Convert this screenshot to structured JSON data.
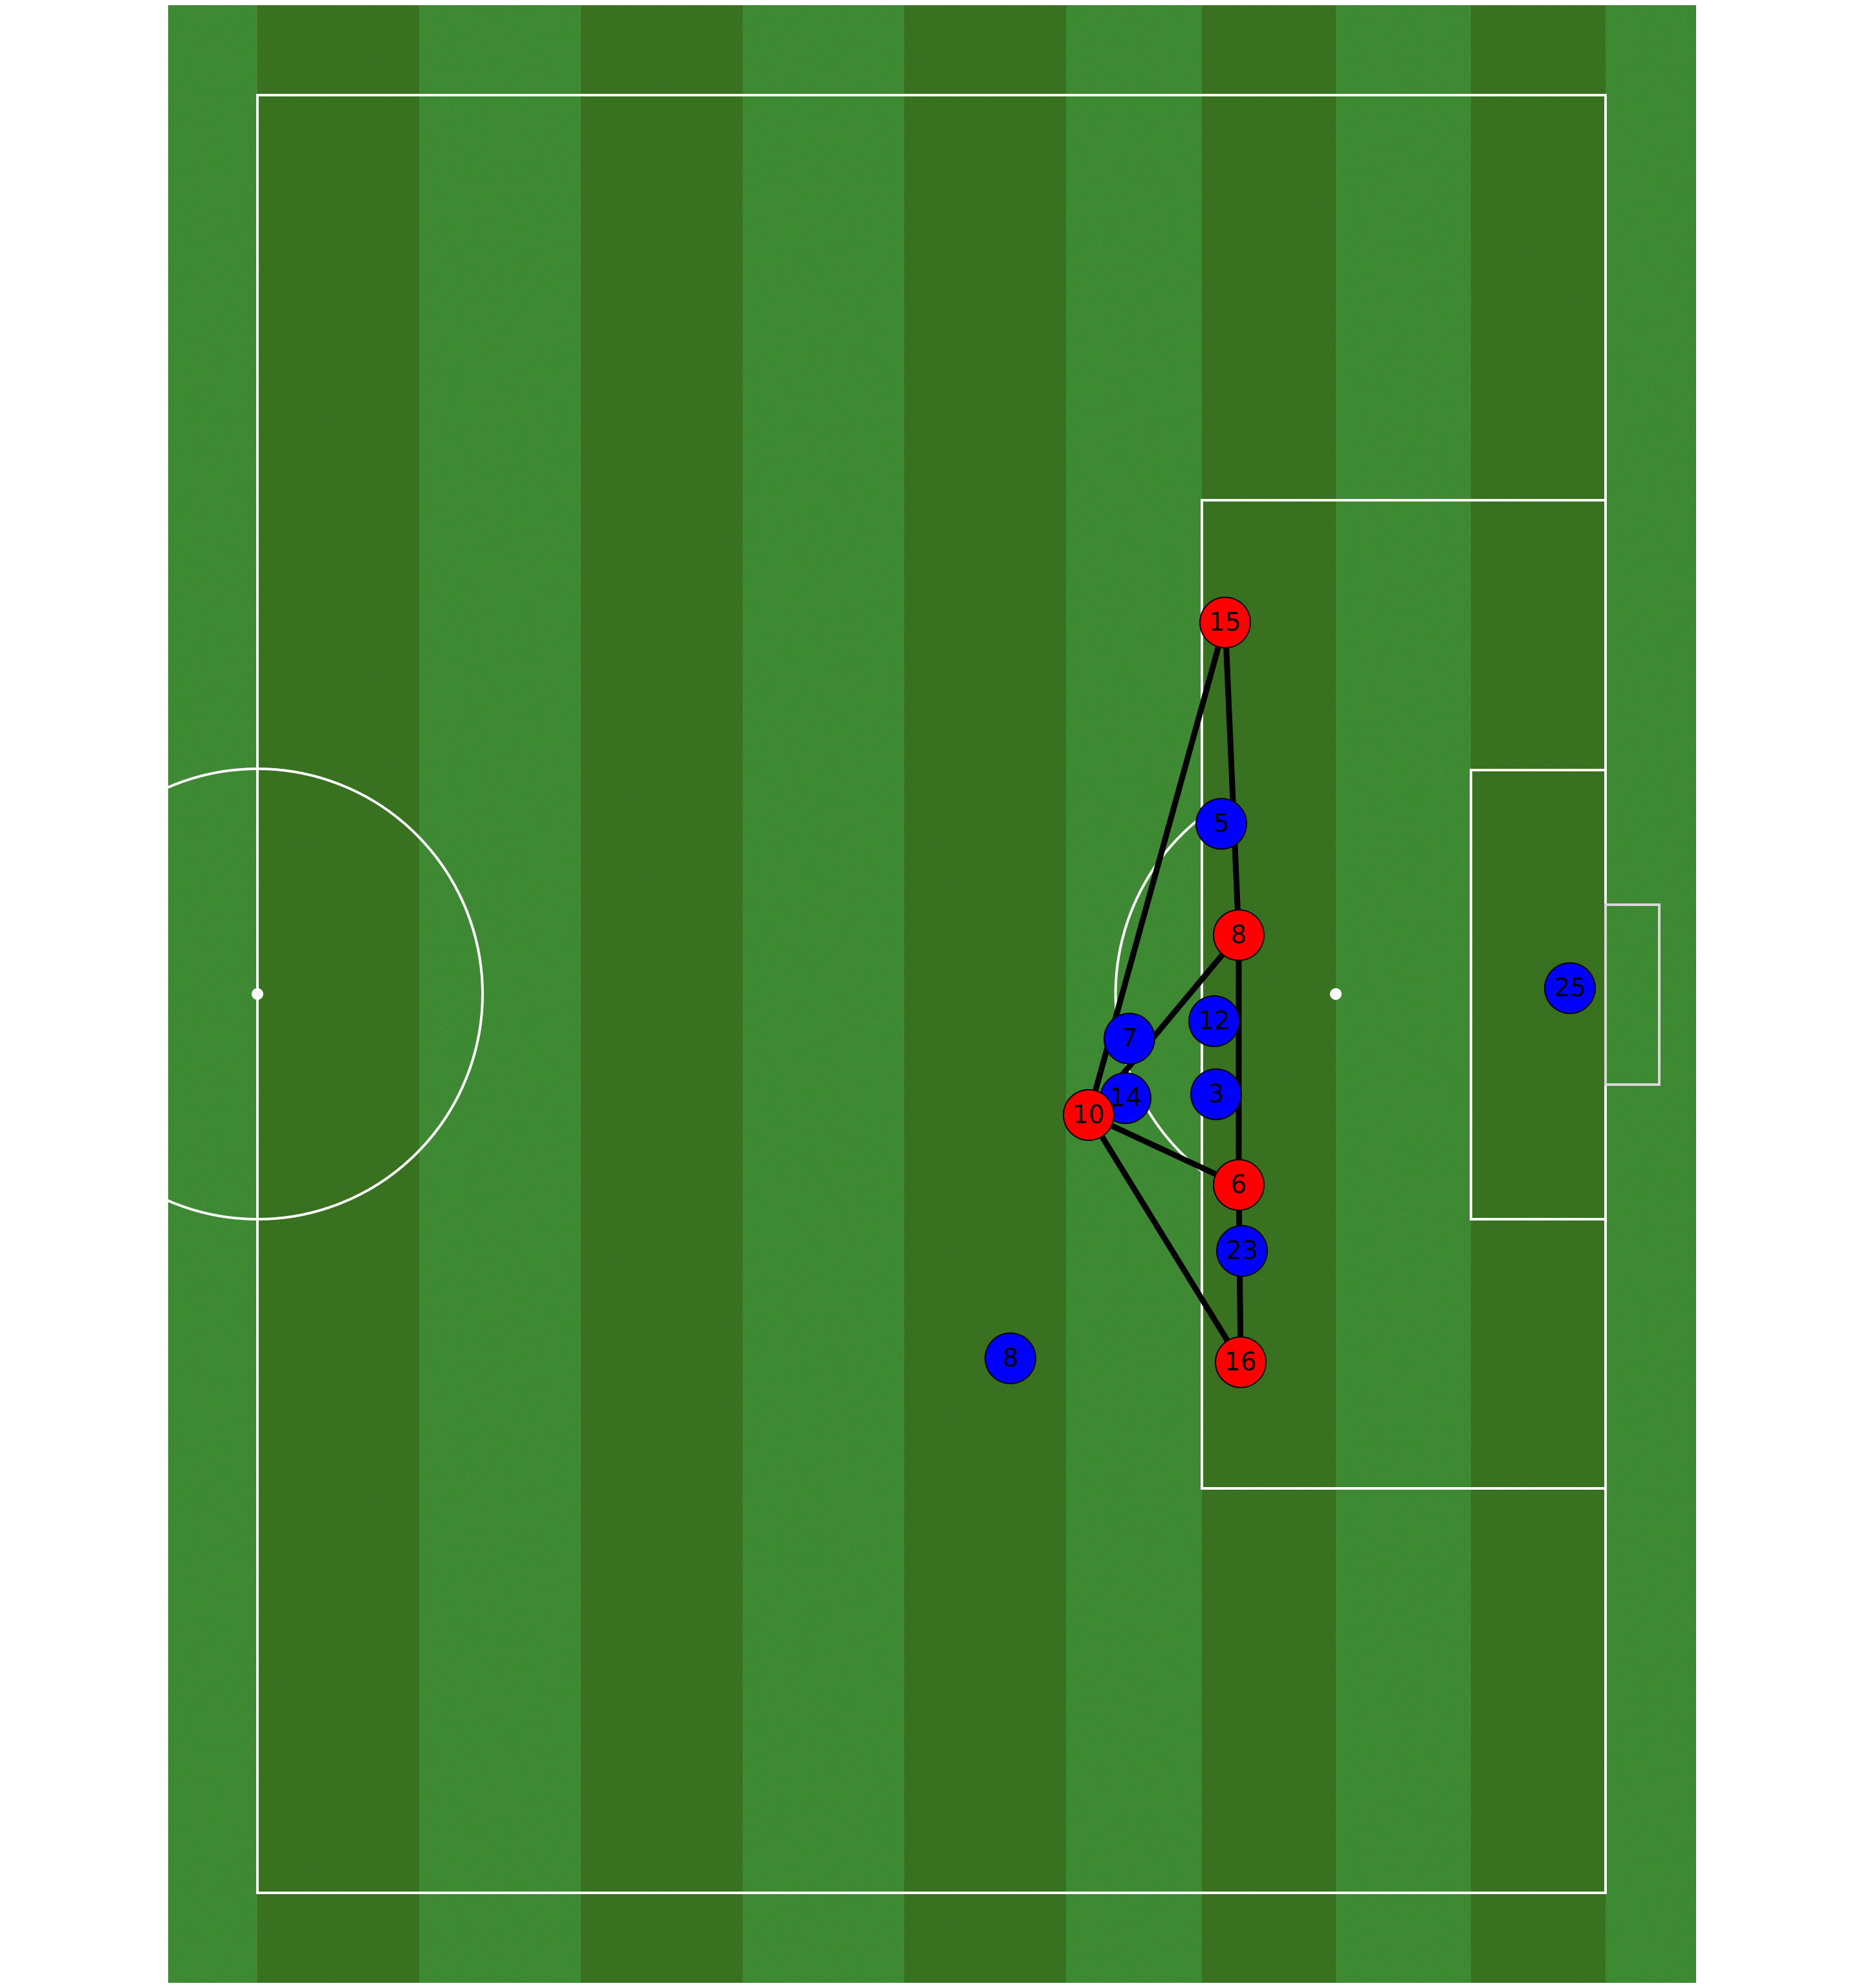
{
  "pitch": {
    "colors": {
      "grass_light": "#469a3a",
      "grass_dark": "#3f7f24",
      "lines": "#ffffff",
      "pass_lines": "#000000"
    }
  },
  "teams": {
    "attacking": {
      "color": "#ff0000",
      "edge": "#000000"
    },
    "defending": {
      "color": "#0000ff",
      "edge": "#000000"
    }
  },
  "players": {
    "attacking": [
      {
        "id": "a15",
        "number": "15"
      },
      {
        "id": "a8",
        "number": "8"
      },
      {
        "id": "a10",
        "number": "10"
      },
      {
        "id": "a6",
        "number": "6"
      },
      {
        "id": "a16",
        "number": "16"
      }
    ],
    "defending": [
      {
        "id": "d5",
        "number": "5"
      },
      {
        "id": "d12",
        "number": "12"
      },
      {
        "id": "d7",
        "number": "7"
      },
      {
        "id": "d14",
        "number": "14"
      },
      {
        "id": "d3",
        "number": "3"
      },
      {
        "id": "d23",
        "number": "23"
      },
      {
        "id": "d8",
        "number": "8"
      },
      {
        "id": "d25",
        "number": "25"
      }
    ]
  },
  "connections": [
    [
      "a15",
      "a8"
    ],
    [
      "a15",
      "a10"
    ],
    [
      "a8",
      "a10"
    ],
    [
      "a8",
      "a6"
    ],
    [
      "a10",
      "a6"
    ],
    [
      "a10",
      "a16"
    ],
    [
      "a6",
      "a16"
    ]
  ]
}
